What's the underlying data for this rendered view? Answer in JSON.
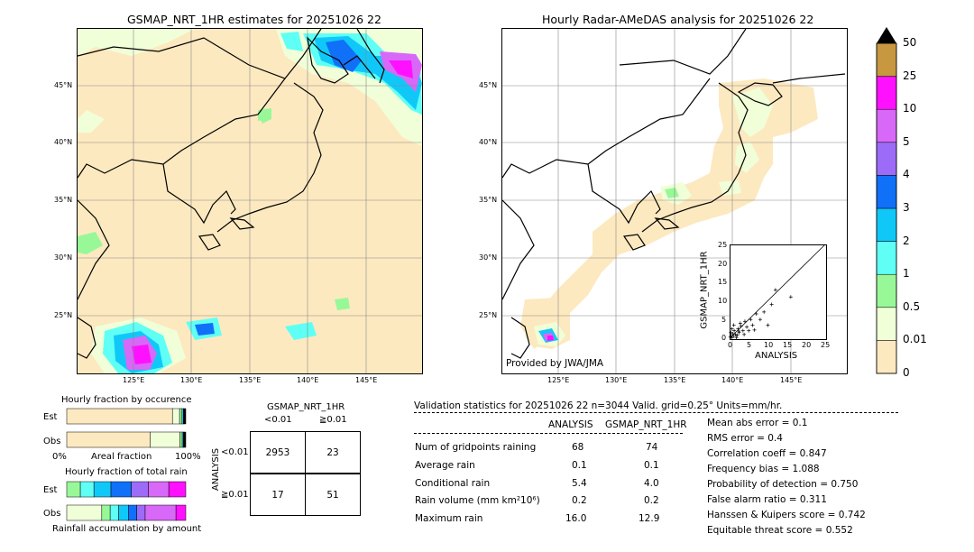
{
  "left_map": {
    "title": "GSMAP_NRT_1HR estimates for 20251026 22",
    "lat_labels": [
      "45°N",
      "40°N",
      "35°N",
      "30°N",
      "25°N"
    ],
    "lon_labels": [
      "125°E",
      "130°E",
      "135°E",
      "140°E",
      "145°E"
    ]
  },
  "right_map": {
    "title": "Hourly Radar-AMeDAS analysis for 20251026 22",
    "lat_labels": [
      "45°N",
      "40°N",
      "35°N",
      "30°N",
      "25°N"
    ],
    "lon_labels": [
      "125°E",
      "130°E",
      "135°E",
      "140°E",
      "145°E"
    ],
    "credit": "Provided by JWA/JMA"
  },
  "colorbar": {
    "levels": [
      "0",
      "0.01",
      "0.5",
      "1",
      "2",
      "3",
      "4",
      "5",
      "10",
      "25",
      "50"
    ],
    "colors": [
      "#fde9c0",
      "#f0ffd8",
      "#98f898",
      "#5ffff5",
      "#10c8f8",
      "#1070f8",
      "#9c6cf8",
      "#d868f8",
      "#ff10ff",
      "#c89840"
    ],
    "extend_color": "#000000"
  },
  "chart_data": [
    {
      "type": "scatter",
      "name": "inset",
      "xlabel": "ANALYSIS",
      "ylabel": "GSMAP_NRT_1HR",
      "xlim": [
        0,
        25
      ],
      "ylim": [
        0,
        25
      ],
      "ticks": [
        "0",
        "5",
        "10",
        "15",
        "20",
        "25"
      ],
      "points": [
        [
          0.2,
          0.3
        ],
        [
          0.5,
          0.1
        ],
        [
          0.8,
          1.2
        ],
        [
          1.0,
          0.5
        ],
        [
          1.2,
          2.0
        ],
        [
          1.5,
          1.0
        ],
        [
          2.0,
          0.8
        ],
        [
          2.2,
          2.5
        ],
        [
          2.5,
          1.5
        ],
        [
          3.0,
          3.2
        ],
        [
          3.5,
          2.0
        ],
        [
          4.0,
          4.5
        ],
        [
          4.5,
          3.0
        ],
        [
          5.0,
          2.0
        ],
        [
          5.5,
          5.0
        ],
        [
          6.0,
          3.5
        ],
        [
          7.0,
          6.5
        ],
        [
          8.0,
          5.0
        ],
        [
          9.0,
          7.0
        ],
        [
          10.0,
          3.5
        ],
        [
          11.0,
          9.0
        ],
        [
          12.0,
          12.9
        ],
        [
          16.0,
          11.0
        ],
        [
          0.3,
          1.5
        ],
        [
          1.8,
          0.2
        ],
        [
          2.8,
          4.0
        ],
        [
          0.6,
          2.5
        ],
        [
          3.8,
          1.0
        ],
        [
          6.5,
          2.2
        ],
        [
          1.1,
          3.5
        ],
        [
          0.4,
          0.6
        ],
        [
          2.4,
          1.9
        ]
      ]
    },
    {
      "type": "bar",
      "name": "fraction-occurrence",
      "title": "Hourly fraction by occurence",
      "categories": [
        "Est",
        "Obs"
      ],
      "xlabel_left": "0%",
      "xlabel_mid": "Areal fraction",
      "xlabel_right": "100%",
      "series": [
        {
          "name": "Est",
          "segments": [
            {
              "value": 0.888,
              "color": "#fde9c0"
            },
            {
              "value": 0.06,
              "color": "#f0ffd8"
            },
            {
              "value": 0.02,
              "color": "#98f898"
            },
            {
              "value": 0.012,
              "color": "#10c8f8"
            },
            {
              "value": 0.02,
              "color": "#000000"
            }
          ]
        },
        {
          "name": "Obs",
          "segments": [
            {
              "value": 0.7,
              "color": "#fde9c0"
            },
            {
              "value": 0.25,
              "color": "#f0ffd8"
            },
            {
              "value": 0.02,
              "color": "#98f898"
            },
            {
              "value": 0.01,
              "color": "#10c8f8"
            },
            {
              "value": 0.02,
              "color": "#000000"
            }
          ]
        }
      ]
    },
    {
      "type": "bar",
      "name": "fraction-total-rain",
      "title": "Hourly fraction of total rain",
      "categories": [
        "Est",
        "Obs"
      ],
      "xlabel": "Rainfall accumulation by amount",
      "series": [
        {
          "name": "Est",
          "segments": [
            {
              "value": 0.08,
              "color": "#98f898"
            },
            {
              "value": 0.08,
              "color": "#5ffff5"
            },
            {
              "value": 0.1,
              "color": "#10c8f8"
            },
            {
              "value": 0.12,
              "color": "#1070f8"
            },
            {
              "value": 0.1,
              "color": "#9c6cf8"
            },
            {
              "value": 0.12,
              "color": "#d868f8"
            },
            {
              "value": 0.1,
              "color": "#ff10ff"
            }
          ]
        },
        {
          "name": "Obs",
          "segments": [
            {
              "value": 0.25,
              "color": "#f0ffd8"
            },
            {
              "value": 0.06,
              "color": "#98f898"
            },
            {
              "value": 0.06,
              "color": "#5ffff5"
            },
            {
              "value": 0.07,
              "color": "#10c8f8"
            },
            {
              "value": 0.06,
              "color": "#1070f8"
            },
            {
              "value": 0.06,
              "color": "#9c6cf8"
            },
            {
              "value": 0.22,
              "color": "#d868f8"
            },
            {
              "value": 0.07,
              "color": "#ff10ff"
            }
          ]
        }
      ]
    }
  ],
  "contingency": {
    "title": "GSMAP_NRT_1HR",
    "col_headers": [
      "<0.01",
      "≧0.01"
    ],
    "row_axis": "ANALYSIS",
    "row_headers": [
      "<0.01",
      "≧0.01"
    ],
    "cells": [
      [
        "2953",
        "23"
      ],
      [
        "17",
        "51"
      ]
    ]
  },
  "validation": {
    "header": "Validation statistics for 20251026 22  n=3044 Valid. grid=0.25° Units=mm/hr.",
    "col_analysis": "ANALYSIS",
    "col_gsmap": "GSMAP_NRT_1HR",
    "rows": [
      {
        "label": "Num of gridpoints raining",
        "analysis": "68",
        "gsmap": "74"
      },
      {
        "label": "Average rain",
        "analysis": "0.1",
        "gsmap": "0.1"
      },
      {
        "label": "Conditional rain",
        "analysis": "5.4",
        "gsmap": "4.0"
      },
      {
        "label": "Rain volume (mm km²10⁶)",
        "analysis": "0.2",
        "gsmap": "0.2"
      },
      {
        "label": "Maximum rain",
        "analysis": "16.0",
        "gsmap": "12.9"
      }
    ],
    "scores": [
      "Mean abs error =    0.1",
      "RMS error =    0.4",
      "Correlation coeff =  0.847",
      "Frequency bias =  1.088",
      "Probability of detection =  0.750",
      "False alarm ratio =  0.311",
      "Hanssen & Kuipers score =  0.742",
      "Equitable threat score =  0.552"
    ]
  }
}
